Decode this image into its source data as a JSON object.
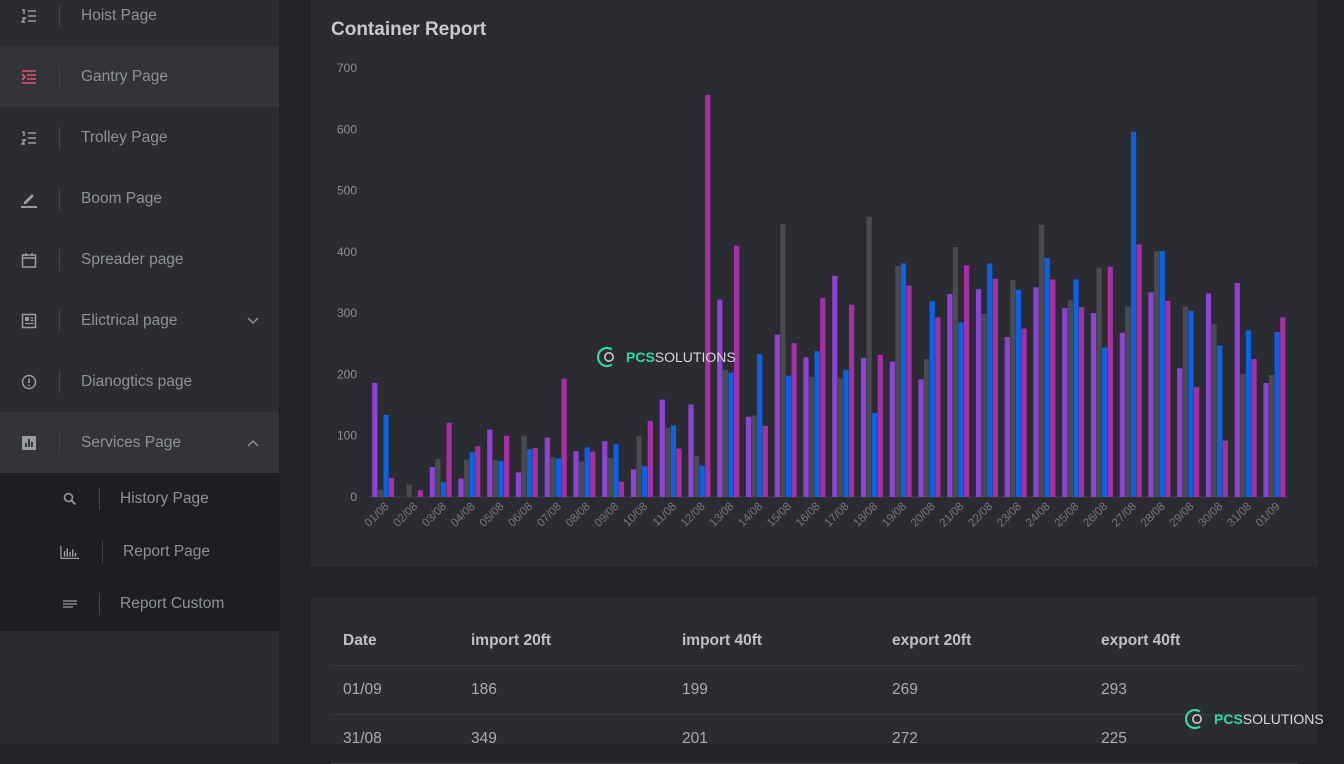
{
  "sidebar": {
    "items": [
      {
        "label": "Hoist Page",
        "icon": "list-ordered-icon"
      },
      {
        "label": "Gantry Page",
        "icon": "list-indent-icon"
      },
      {
        "label": "Trolley Page",
        "icon": "list-ordered-icon"
      },
      {
        "label": "Boom Page",
        "icon": "pencil-icon"
      },
      {
        "label": "Spreader page",
        "icon": "calendar-icon"
      },
      {
        "label": "Elictrical page",
        "icon": "newspaper-icon"
      },
      {
        "label": "Dianogtics page",
        "icon": "alert-circle-icon"
      },
      {
        "label": "Services Page",
        "icon": "bar-chart-box-icon"
      }
    ],
    "subitems": [
      {
        "label": "History Page",
        "icon": "search-icon"
      },
      {
        "label": "Report Page",
        "icon": "bar-chart-icon"
      },
      {
        "label": "Report Custom",
        "icon": "lines-icon"
      }
    ]
  },
  "chart": {
    "title": "Container Report",
    "watermark": {
      "pcs": "PCS",
      "solutions": "SOLUTIONS"
    }
  },
  "colors": {
    "import20": "#8f43d6",
    "import40": "#4a4b50",
    "export20": "#0a63e6",
    "export40": "#a62ea6",
    "accent": "#2fd8a8"
  },
  "chart_data": {
    "type": "bar",
    "title": "Container Report",
    "ylim": [
      0,
      700
    ],
    "yticks": [
      0,
      100,
      200,
      300,
      400,
      500,
      600,
      700
    ],
    "categories": [
      "01/08",
      "02/08",
      "03/08",
      "04/08",
      "05/08",
      "06/08",
      "07/08",
      "08/08",
      "09/08",
      "10/08",
      "11/08",
      "12/08",
      "13/08",
      "14/08",
      "15/08",
      "16/08",
      "17/08",
      "18/08",
      "19/08",
      "20/08",
      "21/08",
      "22/08",
      "23/08",
      "24/08",
      "25/08",
      "26/08",
      "27/08",
      "28/08",
      "29/08",
      "30/08",
      "31/08",
      "01/09"
    ],
    "series": [
      {
        "name": "import 20ft",
        "color": "#8f43d6",
        "values": [
          186,
          0,
          49,
          30,
          110,
          40,
          97,
          75,
          91,
          45,
          159,
          151,
          322,
          131,
          265,
          228,
          361,
          227,
          221,
          192,
          331,
          339,
          261,
          342,
          308,
          300,
          268,
          334,
          210,
          332,
          349,
          186
        ]
      },
      {
        "name": "import 40ft",
        "color": "#4a4b50",
        "values": [
          12,
          20,
          62,
          61,
          60,
          100,
          65,
          58,
          64,
          99,
          113,
          67,
          208,
          133,
          445,
          196,
          194,
          457,
          377,
          225,
          408,
          299,
          354,
          444,
          321,
          374,
          311,
          401,
          311,
          282,
          201,
          199
        ]
      },
      {
        "name": "export 20ft",
        "color": "#0a63e6",
        "values": [
          134,
          0,
          24,
          73,
          59,
          78,
          63,
          81,
          86,
          50,
          117,
          51,
          203,
          233,
          198,
          238,
          207,
          137,
          381,
          319,
          285,
          381,
          338,
          390,
          355,
          244,
          596,
          401,
          304,
          247,
          272,
          269
        ]
      },
      {
        "name": "export 40ft",
        "color": "#a62ea6",
        "values": [
          31,
          11,
          121,
          83,
          100,
          80,
          193,
          74,
          25,
          124,
          79,
          656,
          410,
          116,
          251,
          325,
          314,
          232,
          345,
          293,
          378,
          356,
          275,
          355,
          310,
          376,
          412,
          320,
          179,
          92,
          225,
          293
        ]
      }
    ]
  },
  "table": {
    "headers": [
      "Date",
      "import 20ft",
      "import 40ft",
      "export 20ft",
      "export 40ft"
    ],
    "rows": [
      [
        "01/09",
        "186",
        "199",
        "269",
        "293"
      ],
      [
        "31/08",
        "349",
        "201",
        "272",
        "225"
      ]
    ]
  },
  "footer_brand": {
    "pcs": "PCS",
    "solutions": "SOLUTIONS"
  }
}
